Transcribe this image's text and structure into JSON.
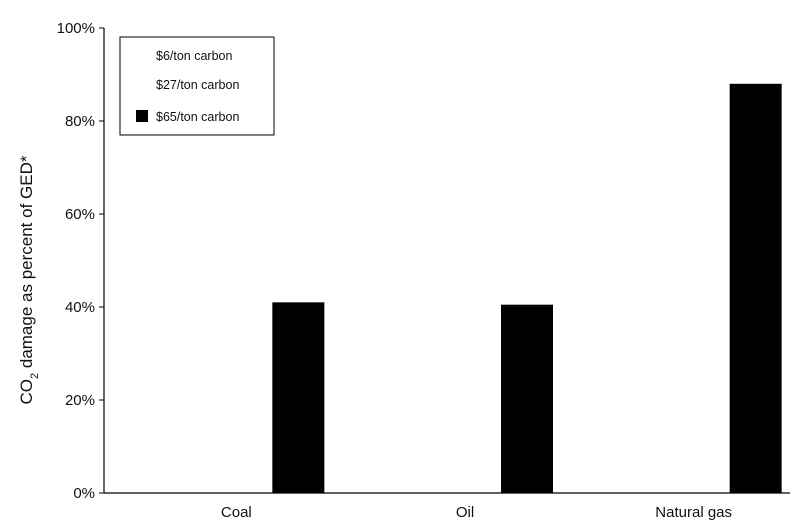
{
  "chart_data": {
    "type": "bar",
    "categories": [
      "Coal",
      "Oil",
      "Natural gas"
    ],
    "series": [
      {
        "name": "$6/ton carbon",
        "values": [
          0,
          0,
          0
        ],
        "color": "#ffffff"
      },
      {
        "name": "$27/ton carbon",
        "values": [
          0,
          0,
          0
        ],
        "color": "#ffffff"
      },
      {
        "name": "$65/ton carbon",
        "values": [
          41,
          40.5,
          88
        ],
        "color": "#000000"
      }
    ],
    "ylabel": "CO₂ damage as percent of GED*",
    "ylabel_parts": {
      "pre": "CO",
      "sub": "2",
      "post": " damage as percent of GED*"
    },
    "xlabel": "",
    "ylim": [
      0,
      100
    ],
    "yticks": [
      0,
      20,
      40,
      60,
      80,
      100
    ],
    "ytick_labels": [
      "0%",
      "20%",
      "40%",
      "60%",
      "80%",
      "100%"
    ],
    "grid": false,
    "legend_position": "top-left"
  }
}
